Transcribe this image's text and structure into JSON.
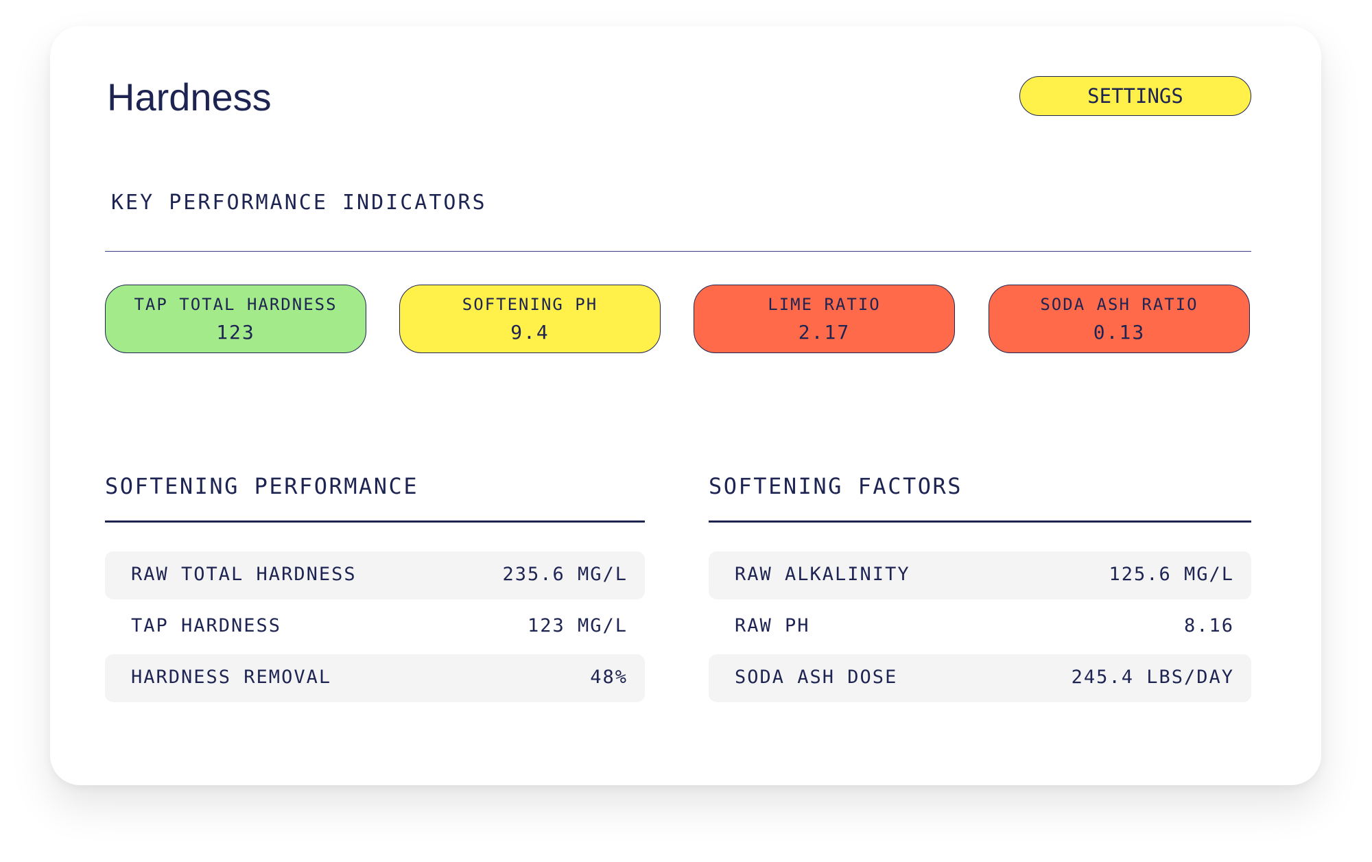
{
  "header": {
    "title": "Hardness",
    "settings": "SETTINGS"
  },
  "kpi": {
    "title": "KEY PERFORMANCE INDICATORS",
    "items": [
      {
        "label": "TAP TOTAL HARDNESS",
        "value": "123"
      },
      {
        "label": "SOFTENING PH",
        "value": "9.4"
      },
      {
        "label": "LIME RATIO",
        "value": "2.17"
      },
      {
        "label": "SODA ASH RATIO",
        "value": "0.13"
      }
    ]
  },
  "sections": [
    {
      "title": "SOFTENING PERFORMANCE",
      "rows": [
        [
          "RAW TOTAL HARDNESS",
          "235.6 MG/L"
        ],
        [
          "TAP HARDNESS",
          "123 MG/L"
        ],
        [
          "HARDNESS REMOVAL",
          "48%"
        ]
      ]
    },
    {
      "title": "SOFTENING FACTORS",
      "rows": [
        [
          "RAW ALKALINITY",
          "125.6 MG/L"
        ],
        [
          "RAW PH",
          "8.16"
        ],
        [
          "SODA ASH DOSE",
          "245.4 LBS/DAY"
        ]
      ]
    }
  ]
}
